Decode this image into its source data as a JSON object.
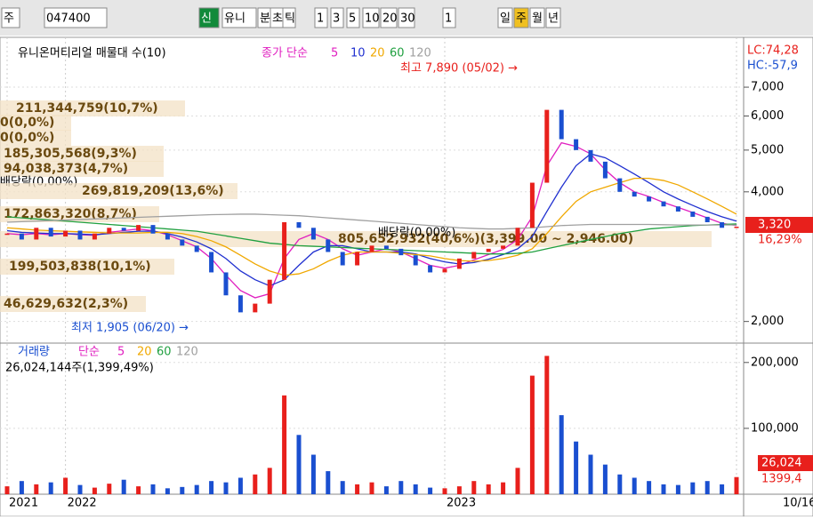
{
  "toolbar": {
    "items": [
      "주",
      "047400",
      "신",
      "유니",
      "분",
      "초",
      "틱",
      "1",
      "3",
      "5",
      "10",
      "20",
      "30",
      "1",
      "일",
      "주",
      "월",
      "년"
    ]
  },
  "chart_data": [
    {
      "type": "candle-line",
      "title": "유니온머티리얼 매물대 수(10)",
      "legend_prefix": "종가 단순",
      "log_scale": true,
      "categories": [
        "2021",
        null,
        null,
        null,
        "2022",
        null,
        null,
        null,
        null,
        null,
        null,
        null,
        null,
        null,
        null,
        null,
        null,
        null,
        null,
        null,
        null,
        null,
        null,
        null,
        null,
        null,
        null,
        null,
        null,
        null,
        "2023",
        null,
        null,
        null,
        null,
        null,
        null,
        null,
        null,
        null,
        null,
        null,
        null,
        null,
        null,
        null,
        null,
        null,
        null,
        null,
        "10/16"
      ],
      "close": {
        "up_color": "#e8201c",
        "down_color": "#1a4fd0",
        "values": [
          3200,
          3100,
          3300,
          3150,
          3250,
          3100,
          3200,
          3300,
          3250,
          3350,
          3200,
          3100,
          3000,
          2900,
          2600,
          2300,
          2100,
          2200,
          2500,
          3400,
          3300,
          3100,
          2900,
          2700,
          2900,
          3000,
          2950,
          2850,
          2700,
          2600,
          2650,
          2800,
          2900,
          2950,
          3000,
          3300,
          4200,
          6200,
          5300,
          5000,
          4700,
          4300,
          4000,
          3900,
          3800,
          3700,
          3600,
          3500,
          3400,
          3300,
          3320
        ]
      },
      "series": [
        {
          "name": "5",
          "color": "#e020c0",
          "values": [
            3200,
            3180,
            3200,
            3180,
            3200,
            3180,
            3170,
            3220,
            3250,
            3280,
            3250,
            3180,
            3080,
            2980,
            2800,
            2560,
            2360,
            2270,
            2320,
            2800,
            3100,
            3200,
            3100,
            2950,
            2850,
            2900,
            2950,
            2900,
            2800,
            2700,
            2660,
            2700,
            2780,
            2860,
            2940,
            3100,
            3500,
            4600,
            5200,
            5100,
            4900,
            4500,
            4200,
            4000,
            3900,
            3780,
            3680,
            3580,
            3480,
            3380,
            3340
          ]
        },
        {
          "name": "10",
          "color": "#2030d0",
          "values": [
            3250,
            3220,
            3210,
            3200,
            3200,
            3190,
            3180,
            3200,
            3220,
            3240,
            3240,
            3200,
            3140,
            3060,
            2950,
            2800,
            2620,
            2500,
            2420,
            2500,
            2700,
            2900,
            3000,
            3000,
            2950,
            2900,
            2900,
            2900,
            2870,
            2800,
            2750,
            2720,
            2740,
            2790,
            2860,
            2950,
            3150,
            3600,
            4100,
            4600,
            4900,
            4800,
            4600,
            4400,
            4200,
            4000,
            3850,
            3720,
            3600,
            3500,
            3420
          ]
        },
        {
          "name": "20",
          "color": "#f0a800",
          "values": [
            3300,
            3280,
            3260,
            3250,
            3240,
            3230,
            3220,
            3210,
            3210,
            3210,
            3220,
            3220,
            3200,
            3150,
            3080,
            2980,
            2850,
            2720,
            2620,
            2560,
            2580,
            2650,
            2760,
            2850,
            2900,
            2900,
            2900,
            2880,
            2860,
            2840,
            2800,
            2770,
            2760,
            2770,
            2800,
            2850,
            2950,
            3200,
            3500,
            3800,
            4000,
            4100,
            4200,
            4300,
            4300,
            4250,
            4150,
            4000,
            3850,
            3700,
            3550
          ]
        },
        {
          "name": "60",
          "color": "#20a040",
          "values": [
            3500,
            3480,
            3460,
            3440,
            3420,
            3400,
            3380,
            3360,
            3340,
            3320,
            3300,
            3280,
            3260,
            3240,
            3200,
            3160,
            3120,
            3080,
            3040,
            3020,
            3000,
            2990,
            2980,
            2970,
            2960,
            2950,
            2940,
            2930,
            2920,
            2910,
            2900,
            2890,
            2880,
            2870,
            2870,
            2880,
            2900,
            2950,
            3000,
            3050,
            3100,
            3150,
            3200,
            3240,
            3280,
            3300,
            3320,
            3340,
            3350,
            3360,
            3370
          ]
        },
        {
          "name": "120",
          "color": "#a0a0a0",
          "values": [
            3400,
            3410,
            3420,
            3430,
            3440,
            3450,
            3460,
            3470,
            3480,
            3490,
            3500,
            3510,
            3520,
            3530,
            3540,
            3545,
            3550,
            3550,
            3540,
            3530,
            3520,
            3500,
            3480,
            3460,
            3440,
            3420,
            3400,
            3380,
            3360,
            3340,
            3320,
            3300,
            3290,
            3280,
            3280,
            3290,
            3300,
            3320,
            3340,
            3350,
            3360,
            3360,
            3360,
            3360,
            3360,
            3355,
            3350,
            3350,
            3350,
            3350,
            3350
          ]
        }
      ],
      "ylim": [
        1790,
        8880
      ],
      "yticks": [
        {
          "value": 2000,
          "label": "2,000"
        },
        {
          "value": 4000,
          "label": "4,000"
        },
        {
          "value": 5000,
          "label": "5,000"
        },
        {
          "value": 6000,
          "label": "6,000"
        },
        {
          "value": 7000,
          "label": "7,000"
        }
      ],
      "annotations": [
        "최고 7,890 (05/02) →",
        "최저 1,905 (06/20) →"
      ],
      "profile_labels": [
        "211,344,759(10,7%)",
        "0(0,0%)",
        "0(0,0%)",
        "185,305,568(9,3%)",
        "94,038,373(4,7%)",
        "배당락(0,00%)",
        "269,819,209(13,6%)",
        "172,863,320(8,7%)",
        "805,652,932(40,6%)(3,399.00 ~ 2,946.00)",
        "배당락(0,00%)",
        "199,503,838(10,1%)",
        "46,629,632(2,3%)"
      ],
      "side_labels": [
        "LC:74,28",
        "HC:-57,9"
      ],
      "last_label": "3,320",
      "change_label": "16,29%"
    },
    {
      "type": "volume",
      "title": "거래량",
      "legend_prefix": "단순",
      "legend": [
        {
          "label": "5",
          "color": "#e020c0"
        },
        {
          "label": "20",
          "color": "#f0a800"
        },
        {
          "label": "60",
          "color": "#20a040"
        },
        {
          "label": "120",
          "color": "#a0a0a0"
        }
      ],
      "subtitle": "26,024,144주(1,399,49%)",
      "values": [
        12000,
        20000,
        15000,
        18000,
        25000,
        14000,
        10000,
        16000,
        22000,
        12000,
        15000,
        9000,
        11000,
        14000,
        20000,
        18000,
        25000,
        30000,
        40000,
        150000,
        90000,
        60000,
        35000,
        20000,
        15000,
        18000,
        12000,
        20000,
        15000,
        10000,
        9000,
        12000,
        20000,
        15000,
        18000,
        40000,
        180000,
        210000,
        120000,
        80000,
        60000,
        45000,
        30000,
        25000,
        20000,
        15000,
        14000,
        18000,
        20000,
        15000,
        26024
      ],
      "ylim": [
        0,
        224000
      ],
      "yticks": [
        {
          "value": 100000,
          "label": "100,000"
        },
        {
          "value": 200000,
          "label": "200,000"
        }
      ],
      "last_label": "26,024",
      "ratio_label": "1399,4"
    }
  ]
}
